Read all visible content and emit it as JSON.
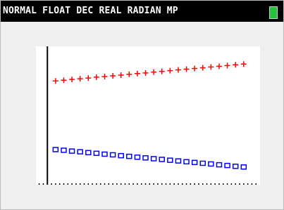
{
  "status_bar": {
    "text": "NORMAL FLOAT DEC REAL RADIAN MP"
  },
  "chart_data": {
    "type": "scatter",
    "x": [
      1,
      2,
      3,
      4,
      5,
      6,
      7,
      8,
      9,
      10,
      11,
      12,
      13,
      14,
      15,
      16,
      17,
      18,
      19,
      20,
      21,
      22,
      23,
      24
    ],
    "series": [
      {
        "color": "#ff0000",
        "marker": "plus",
        "values": [
          7.5,
          7.55,
          7.61,
          7.66,
          7.71,
          7.77,
          7.82,
          7.87,
          7.92,
          7.98,
          8.03,
          8.08,
          8.14,
          8.19,
          8.24,
          8.3,
          8.35,
          8.4,
          8.45,
          8.51,
          8.56,
          8.61,
          8.67,
          8.72
        ]
      },
      {
        "color": "#0000ff",
        "marker": "square",
        "values": [
          2.54,
          2.49,
          2.43,
          2.38,
          2.32,
          2.27,
          2.21,
          2.16,
          2.1,
          2.05,
          1.99,
          1.94,
          1.88,
          1.83,
          1.77,
          1.72,
          1.66,
          1.61,
          1.55,
          1.5,
          1.44,
          1.39,
          1.33,
          1.28
        ]
      }
    ],
    "xlim": [
      -1.4,
      26
    ],
    "ylim": [
      0,
      10
    ],
    "xticks": [
      -1,
      -0.5,
      0,
      0.5,
      1,
      1.5,
      2,
      2.5,
      3,
      3.5,
      4,
      4.5,
      5,
      5.5,
      6,
      6.5,
      7,
      7.5,
      8,
      8.5,
      9,
      9.5,
      10,
      10.5,
      11,
      11.5,
      12,
      12.5,
      13,
      13.5,
      14,
      14.5,
      15,
      15.5,
      16,
      16.5,
      17,
      17.5,
      18,
      18.5,
      19,
      19.5,
      20,
      20.5,
      21,
      21.5,
      22,
      22.5,
      23,
      23.5,
      24,
      24.5,
      25,
      25.5
    ]
  }
}
